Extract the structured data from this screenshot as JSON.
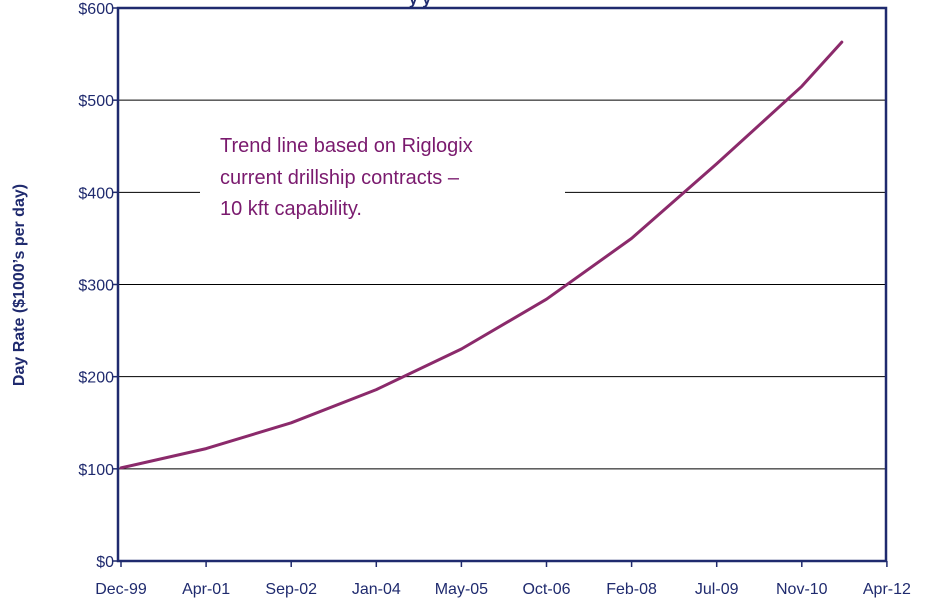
{
  "chart_data": {
    "type": "line",
    "title": "",
    "title_fragment": "y y",
    "ylabel": "Day Rate ($1000’s per day)",
    "xlabel": "",
    "x_ticks": [
      "Dec-99",
      "Apr-01",
      "Sep-02",
      "Jan-04",
      "May-05",
      "Oct-06",
      "Feb-08",
      "Jul-09",
      "Nov-10",
      "Apr-12"
    ],
    "y_ticks": [
      "$0",
      "$100",
      "$200",
      "$300",
      "$400",
      "$500",
      "$600"
    ],
    "ylim": [
      0,
      600
    ],
    "grid": true,
    "legend": "none",
    "annotation": [
      "Trend line based on Riglogix",
      "current drillship contracts –",
      "10 kft capability."
    ],
    "series": [
      {
        "color": "#8b2a6b",
        "x": [
          "Dec-99",
          "Apr-01",
          "Sep-02",
          "Jan-04",
          "May-05",
          "Oct-06",
          "Feb-08",
          "Jul-09",
          "Nov-10",
          "Jul-11"
        ],
        "values": [
          101,
          122,
          150,
          186,
          230,
          284,
          350,
          431,
          515,
          563
        ]
      }
    ]
  }
}
